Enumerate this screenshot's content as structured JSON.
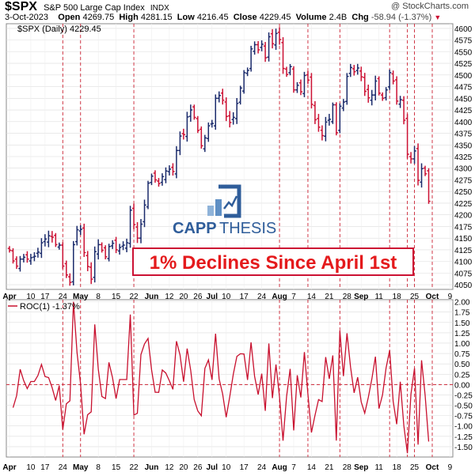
{
  "header": {
    "symbol": "$SPX",
    "name": "S&P 500 Large Cap Index",
    "exchange": "INDX",
    "copyright": "@ StockCharts.com",
    "date": "3-Oct-2023",
    "open_label": "Open",
    "open": "4269.75",
    "high_label": "High",
    "high": "4281.15",
    "low_label": "Low",
    "low": "4216.45",
    "close_label": "Close",
    "close": "4229.45",
    "volume_label": "Volume",
    "volume": "2.4B",
    "chg_label": "Chg",
    "chg": "-58.94 (-1.37%)"
  },
  "logo": {
    "text_left": "CAPP",
    "text_right": "THESIS"
  },
  "annotation": "1% Declines Since April 1st",
  "colors": {
    "up": "#1a2a6b",
    "down": "#cc1133",
    "vline": "#cc2233",
    "roc": "#c8102e",
    "grid": "#dddddd",
    "logo_blue": "#2f5d9a",
    "logo_light": "#8fb3d9"
  },
  "chart_data": [
    {
      "type": "ohlc",
      "legend": "$SPX (Daily) 4229.45",
      "ylim": [
        4040,
        4610
      ],
      "yticks": [
        4050,
        4075,
        4100,
        4125,
        4150,
        4175,
        4200,
        4225,
        4250,
        4275,
        4300,
        4325,
        4350,
        4375,
        4400,
        4425,
        4450,
        4475,
        4500,
        4525,
        4550,
        4575,
        4600
      ],
      "x_labels": [
        {
          "d": 0,
          "t": "Apr"
        },
        {
          "d": 6,
          "t": "10"
        },
        {
          "d": 10,
          "t": "17"
        },
        {
          "d": 15,
          "t": "24"
        },
        {
          "d": 20,
          "t": "May"
        },
        {
          "d": 25,
          "t": "8"
        },
        {
          "d": 30,
          "t": "15"
        },
        {
          "d": 35,
          "t": "22"
        },
        {
          "d": 40,
          "t": "Jun"
        },
        {
          "d": 45,
          "t": "12"
        },
        {
          "d": 49,
          "t": "20"
        },
        {
          "d": 53,
          "t": "26"
        },
        {
          "d": 57,
          "t": "Jul"
        },
        {
          "d": 61,
          "t": "10"
        },
        {
          "d": 66,
          "t": "17"
        },
        {
          "d": 71,
          "t": "24"
        },
        {
          "d": 76,
          "t": "Aug"
        },
        {
          "d": 80,
          "t": "7"
        },
        {
          "d": 85,
          "t": "14"
        },
        {
          "d": 90,
          "t": "21"
        },
        {
          "d": 95,
          "t": "28"
        },
        {
          "d": 99,
          "t": "Sep"
        },
        {
          "d": 104,
          "t": "11"
        },
        {
          "d": 109,
          "t": "18"
        },
        {
          "d": 114,
          "t": "25"
        },
        {
          "d": 119,
          "t": "Oct"
        },
        {
          "d": 124,
          "t": "9"
        }
      ],
      "decline_days": [
        15,
        20,
        35,
        76,
        84,
        93,
        107,
        112,
        114,
        119
      ],
      "closes": [
        4124,
        4101,
        4090,
        4105,
        4109,
        4105,
        4108,
        4111,
        4120,
        4140,
        4148,
        4155,
        4152,
        4136,
        4135,
        4090,
        4071,
        4055,
        4136,
        4168,
        4169,
        4119,
        4089,
        4062,
        4121,
        4136,
        4124,
        4110,
        4132,
        4139,
        4125,
        4130,
        4135,
        4140,
        4210,
        4179,
        4150,
        4180,
        4221,
        4268,
        4283,
        4275,
        4267,
        4282,
        4294,
        4298,
        4293,
        4338,
        4369,
        4372,
        4410,
        4425,
        4409,
        4381,
        4348,
        4365,
        4391,
        4396,
        4450,
        4456,
        4446,
        4411,
        4398,
        4409,
        4439,
        4472,
        4505,
        4510,
        4556,
        4565,
        4554,
        4566,
        4537,
        4582,
        4567,
        4589,
        4576,
        4514,
        4501,
        4518,
        4468,
        4478,
        4464,
        4499,
        4489,
        4437,
        4404,
        4388,
        4370,
        4399,
        4405,
        4436,
        4376,
        4433,
        4442,
        4497,
        4516,
        4507,
        4515,
        4496,
        4465,
        4451,
        4457,
        4487,
        4461,
        4450,
        4468,
        4505,
        4487,
        4444,
        4447,
        4403,
        4330,
        4320,
        4337,
        4274,
        4299,
        4288,
        4229
      ],
      "roc": {
        "legend": "ROC(1) -1.37%",
        "ylim": [
          -1.75,
          2.05
        ],
        "yticks": [
          2.0,
          1.75,
          1.5,
          1.25,
          1.0,
          0.75,
          0.5,
          0.25,
          0.0,
          -0.25,
          -0.5,
          -0.75,
          -1.0,
          -1.25,
          -1.5
        ],
        "ytick_labels": [
          "2.00",
          "1.75",
          "1.50",
          "1.25",
          "1.00",
          "0.75",
          "0.50",
          "0.25",
          "0.00",
          "-0.25",
          "-0.50",
          "-0.75",
          "-1.00",
          "-1.25",
          "-1.50"
        ]
      }
    }
  ]
}
